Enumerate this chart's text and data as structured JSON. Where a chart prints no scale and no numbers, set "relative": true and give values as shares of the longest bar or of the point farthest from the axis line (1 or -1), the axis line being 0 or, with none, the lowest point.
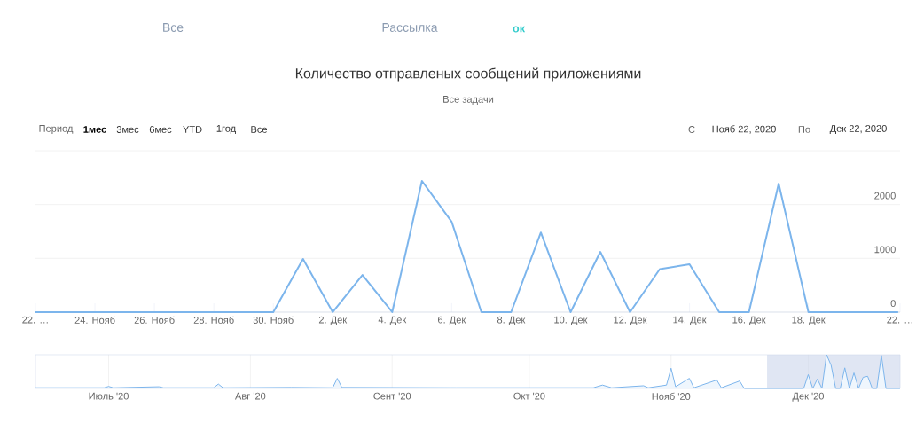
{
  "chart_data": [
    {
      "type": "line",
      "title": "Количество отправленых сообщений приложениями",
      "subtitle": "Все задачи",
      "annotations": [
        "Все",
        "Рассылка",
        "ок",
        "Период",
        "1мес",
        "3мес",
        "6мес",
        "YTD",
        "1год",
        "Все",
        "С",
        "Нояб 22, 2020",
        "По",
        "Дек 22, 2020"
      ],
      "x": [
        "2020-11-22",
        "2020-11-23",
        "2020-11-24",
        "2020-11-25",
        "2020-11-26",
        "2020-11-27",
        "2020-11-28",
        "2020-11-29",
        "2020-11-30",
        "2020-12-01",
        "2020-12-02",
        "2020-12-03",
        "2020-12-04",
        "2020-12-05",
        "2020-12-06",
        "2020-12-07",
        "2020-12-08",
        "2020-12-09",
        "2020-12-10",
        "2020-12-11",
        "2020-12-12",
        "2020-12-13",
        "2020-12-14",
        "2020-12-15",
        "2020-12-16",
        "2020-12-17",
        "2020-12-18",
        "2020-12-19",
        "2020-12-20",
        "2020-12-21"
      ],
      "values": [
        0,
        0,
        0,
        0,
        0,
        0,
        0,
        0,
        0,
        990,
        0,
        690,
        0,
        2440,
        1680,
        0,
        0,
        1480,
        0,
        1120,
        0,
        800,
        890,
        0,
        0,
        2390,
        0,
        0,
        0,
        0
      ],
      "color": "#7cb5ec",
      "xlim": [
        "2020-11-22",
        "2020-12-21T02:00"
      ],
      "ylim": [
        0,
        3000
      ],
      "xticks": [
        {
          "value": "2020-11-22",
          "label": "22. …"
        },
        {
          "value": "2020-11-24",
          "label": "24. Нояб"
        },
        {
          "value": "2020-11-26",
          "label": "26. Нояб"
        },
        {
          "value": "2020-11-28",
          "label": "28. Нояб"
        },
        {
          "value": "2020-11-30",
          "label": "30. Нояб"
        },
        {
          "value": "2020-12-02",
          "label": "2. Дек"
        },
        {
          "value": "2020-12-04",
          "label": "4. Дек"
        },
        {
          "value": "2020-12-06",
          "label": "6. Дек"
        },
        {
          "value": "2020-12-08",
          "label": "8. Дек"
        },
        {
          "value": "2020-12-10",
          "label": "10. Дек"
        },
        {
          "value": "2020-12-12",
          "label": "12. Дек"
        },
        {
          "value": "2020-12-14",
          "label": "14. Дек"
        },
        {
          "value": "2020-12-16",
          "label": "16. Дек"
        },
        {
          "value": "2020-12-18",
          "label": "18. Дек"
        },
        {
          "value": "2020-12-21T02:00",
          "label": "22. …"
        }
      ],
      "yticks": [
        0,
        1000,
        2000,
        {
          "value": 3000,
          "label": null
        }
      ],
      "grid": "y"
    },
    {
      "type": "area",
      "relative": true,
      "color": "#7cb5ec",
      "x": [
        "2020-06-15",
        "2020-06-30",
        "2020-07-01",
        "2020-07-02",
        "2020-07-12",
        "2020-07-13",
        "2020-07-24",
        "2020-07-25",
        "2020-07-26",
        "2020-08-10",
        "2020-08-19",
        "2020-08-20",
        "2020-08-21",
        "2020-09-15",
        "2020-10-15",
        "2020-10-17",
        "2020-10-19",
        "2020-10-26",
        "2020-10-27",
        "2020-10-31",
        "2020-11-01",
        "2020-11-02",
        "2020-11-05",
        "2020-11-06",
        "2020-11-11",
        "2020-11-12",
        "2020-11-16",
        "2020-11-17",
        "2020-11-30",
        "2020-12-01",
        "2020-12-02",
        "2020-12-03",
        "2020-12-04",
        "2020-12-05",
        "2020-12-06",
        "2020-12-07",
        "2020-12-08",
        "2020-12-09",
        "2020-12-10",
        "2020-12-11",
        "2020-12-12",
        "2020-12-13",
        "2020-12-14",
        "2020-12-15",
        "2020-12-16",
        "2020-12-17",
        "2020-12-18",
        "2020-12-21"
      ],
      "values": [
        0.02,
        0.02,
        0.06,
        0.02,
        0.05,
        0.02,
        0.02,
        0.13,
        0.02,
        0.03,
        0.02,
        0.3,
        0.03,
        0.02,
        0.02,
        0.1,
        0.02,
        0.08,
        0.02,
        0.1,
        0.6,
        0.05,
        0.3,
        0.02,
        0.25,
        0.02,
        0.22,
        0,
        0,
        0.41,
        0,
        0.28,
        0,
        1,
        0.69,
        0,
        0,
        0.61,
        0,
        0.46,
        0,
        0.33,
        0.36,
        0,
        0,
        0.98,
        0,
        0
      ],
      "xlim": [
        "2020-06-15",
        "2020-12-21T02:00"
      ],
      "xticks": [
        {
          "value": "2020-07-01",
          "label": "Июль '20"
        },
        {
          "value": "2020-08-01",
          "label": "Авг '20"
        },
        {
          "value": "2020-09-01",
          "label": "Сент '20"
        },
        {
          "value": "2020-10-01",
          "label": "Окт '20"
        },
        {
          "value": "2020-11-01",
          "label": "Нояб '20"
        },
        {
          "value": "2020-12-01",
          "label": "Дек '20"
        }
      ],
      "grid": "x",
      "bands": [
        {
          "axis": "x",
          "from": "2020-11-22",
          "to": "2020-12-21T02:00",
          "color": "#ccd6eb"
        }
      ]
    }
  ]
}
